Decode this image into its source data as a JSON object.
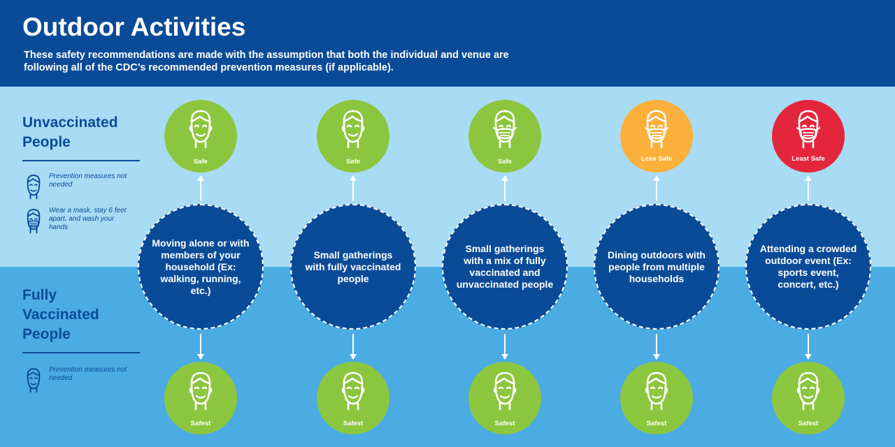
{
  "header": {
    "title": "Outdoor Activities",
    "subtitle": "These safety recommendations are made with the assumption that both the individual and venue are following all of the CDC’s recommended prevention measures (if applicable)."
  },
  "unvaccinated": {
    "title_line1": "Unvaccinated",
    "title_line2": "People",
    "legend": [
      {
        "icon": "face-icon",
        "text": "Prevention measures not needed"
      },
      {
        "icon": "masked-face-icon",
        "text": "Wear a mask, stay 6 feet apart, and wash your hands"
      }
    ]
  },
  "vaccinated": {
    "title_line1": "Fully",
    "title_line2": "Vaccinated",
    "title_line3": "People",
    "legend": [
      {
        "icon": "face-icon",
        "text": "Prevention measures not needed"
      }
    ]
  },
  "colors": {
    "header": "#0a4b98",
    "top_band": "#a8dbf4",
    "bottom_band": "#4aace2",
    "safe": "#8cc63f",
    "less_safe": "#fbb03b",
    "least_safe": "#e4263c"
  },
  "activities": [
    {
      "text": "Moving alone or with members of your household (Ex: walking, running, etc.)",
      "unvaccinated": {
        "label": "Safe",
        "icon": "face-icon"
      },
      "vaccinated": {
        "label": "Safest",
        "icon": "face-icon"
      }
    },
    {
      "text": "Small gatherings with fully vaccinated people",
      "unvaccinated": {
        "label": "Safe",
        "icon": "face-icon"
      },
      "vaccinated": {
        "label": "Safest",
        "icon": "face-icon"
      }
    },
    {
      "text": "Small gatherings with a mix of fully vaccinated and unvaccinated people",
      "unvaccinated": {
        "label": "Safe",
        "icon": "masked-face-icon"
      },
      "vaccinated": {
        "label": "Safest",
        "icon": "face-icon"
      }
    },
    {
      "text": "Dining outdoors with people from multiple households",
      "unvaccinated": {
        "label": "Less Safe",
        "icon": "masked-face-icon"
      },
      "vaccinated": {
        "label": "Safest",
        "icon": "face-icon"
      }
    },
    {
      "text": "Attending a crowded outdoor event (Ex: sports event, concert, etc.)",
      "unvaccinated": {
        "label": "Least Safe",
        "icon": "masked-face-icon"
      },
      "vaccinated": {
        "label": "Safest",
        "icon": "face-icon"
      }
    }
  ]
}
